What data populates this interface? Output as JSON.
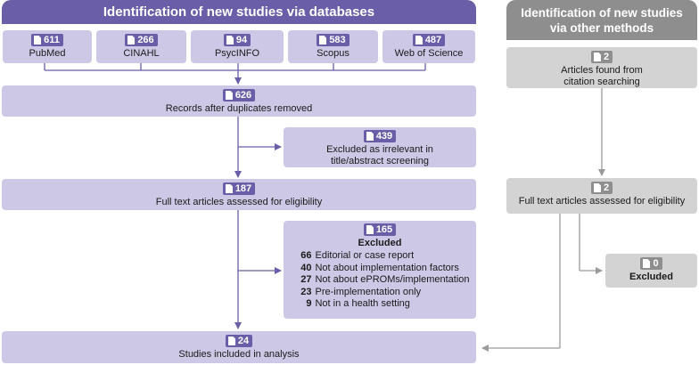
{
  "headers": {
    "databases": "Identification of new studies via databases",
    "other_line1": "Identification of new studies",
    "other_line2": "via other methods"
  },
  "databases": [
    {
      "count": "611",
      "name": "PubMed"
    },
    {
      "count": "266",
      "name": "CINAHL"
    },
    {
      "count": "94",
      "name": "PsycINFO"
    },
    {
      "count": "583",
      "name": "Scopus"
    },
    {
      "count": "487",
      "name": "Web of Science"
    }
  ],
  "records": {
    "count": "626",
    "label": "Records after duplicates removed"
  },
  "excluded_screening": {
    "count": "439",
    "line1": "Excluded as irrelevant in",
    "line2": "title/abstract screening"
  },
  "fulltext": {
    "count": "187",
    "label": "Full text articles assessed for eligibility"
  },
  "excluded_fulltext": {
    "count": "165",
    "title": "Excluded",
    "reasons": [
      {
        "n": "66",
        "text": "Editorial or case report"
      },
      {
        "n": "40",
        "text": "Not about implementation factors"
      },
      {
        "n": "27",
        "text": "Not about ePROMs/implementation"
      },
      {
        "n": "23",
        "text": "Pre-implementation only"
      },
      {
        "n": "9",
        "text": "Not in a health setting"
      }
    ]
  },
  "included": {
    "count": "24",
    "label": "Studies included in analysis"
  },
  "citation": {
    "count": "2",
    "line1": "Articles found from",
    "line2": "citation searching"
  },
  "other_fulltext": {
    "count": "2",
    "label": "Full text articles assessed for eligibility"
  },
  "other_excluded": {
    "count": "0",
    "label": "Excluded"
  },
  "colors": {
    "purple": "#6b5ea8",
    "light_purple": "#cdc8e6",
    "gray": "#8e8e8e",
    "light_gray": "#d3d3d3"
  }
}
